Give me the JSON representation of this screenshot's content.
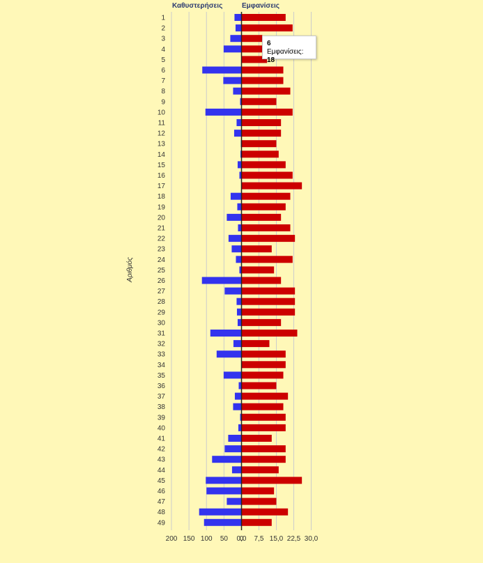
{
  "chart_data": {
    "type": "bar",
    "orientation": "horizontal-diverging",
    "ylabel": "Αριθμός",
    "categories": [
      "1",
      "2",
      "3",
      "4",
      "5",
      "6",
      "7",
      "8",
      "9",
      "10",
      "11",
      "12",
      "13",
      "14",
      "15",
      "16",
      "17",
      "18",
      "19",
      "20",
      "21",
      "22",
      "23",
      "24",
      "25",
      "26",
      "27",
      "28",
      "29",
      "30",
      "31",
      "32",
      "33",
      "34",
      "35",
      "36",
      "37",
      "38",
      "39",
      "40",
      "41",
      "42",
      "43",
      "44",
      "45",
      "46",
      "47",
      "48",
      "49"
    ],
    "series": [
      {
        "name": "Καθυστερήσεις",
        "color": "#3333ee",
        "axis": "left",
        "xlim": [
          0,
          200
        ],
        "ticks": [
          "200",
          "150",
          "100",
          "50",
          "0"
        ],
        "values": [
          20,
          17,
          32,
          51,
          0,
          112,
          52,
          24,
          4,
          103,
          14,
          21,
          2,
          3,
          11,
          6,
          0,
          31,
          12,
          42,
          10,
          37,
          28,
          16,
          6,
          113,
          48,
          14,
          13,
          11,
          89,
          23,
          71,
          0,
          51,
          8,
          19,
          24,
          4,
          9,
          38,
          48,
          84,
          27,
          102,
          100,
          42,
          121,
          107
        ]
      },
      {
        "name": "Εμφανίσεις",
        "color": "#cc0000",
        "axis": "right",
        "xlim": [
          0,
          30
        ],
        "ticks": [
          "0,0",
          "7,5",
          "15,0",
          "22,5",
          "30,0"
        ],
        "values": [
          19,
          22,
          9,
          16,
          11,
          18,
          18,
          21,
          15,
          22,
          17,
          17,
          15,
          16,
          19,
          22,
          26,
          21,
          19,
          17,
          21,
          23,
          13,
          22,
          14,
          17,
          23,
          23,
          23,
          17,
          24,
          12,
          19,
          19,
          18,
          15,
          20,
          18,
          19,
          19,
          13,
          19,
          19,
          16,
          26,
          14,
          15,
          20,
          13
        ]
      }
    ],
    "tooltip": {
      "title": "6",
      "label": "Εμφανίσεις: ",
      "value": "18"
    }
  }
}
